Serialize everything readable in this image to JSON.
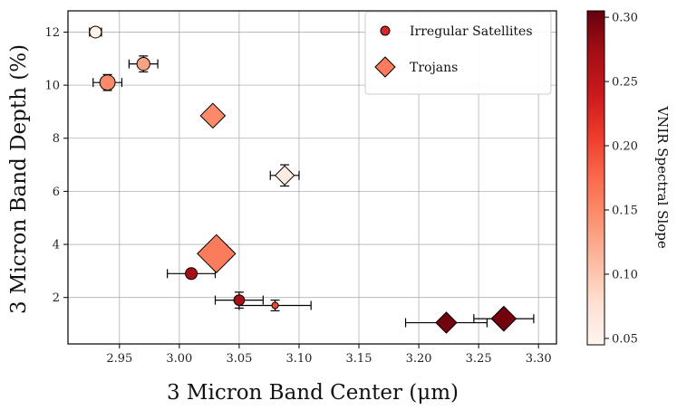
{
  "chart_data": {
    "type": "scatter",
    "xlabel": "3 Micron Band Center (μm)",
    "ylabel": "3 Micron Band Depth (%)",
    "xlim": [
      2.907,
      3.315
    ],
    "ylim": [
      0.25,
      12.8
    ],
    "xticks": [
      2.95,
      3.0,
      3.05,
      3.1,
      3.15,
      3.2,
      3.25,
      3.3
    ],
    "xtick_labels": [
      "2.95",
      "3.00",
      "3.05",
      "3.10",
      "3.15",
      "3.20",
      "3.25",
      "3.30"
    ],
    "yticks": [
      2,
      4,
      6,
      8,
      10,
      12
    ],
    "ytick_labels": [
      "2",
      "4",
      "6",
      "8",
      "10",
      "12"
    ],
    "grid": true,
    "legend": {
      "position": "top-right",
      "entries": [
        {
          "label": "Irregular Satellites",
          "marker": "circle"
        },
        {
          "label": "Trojans",
          "marker": "diamond"
        }
      ]
    },
    "colorbar": {
      "label": "VNIR Spectral Slope",
      "range": [
        0.045,
        0.305
      ],
      "ticks": [
        0.05,
        0.1,
        0.15,
        0.2,
        0.25,
        0.3
      ],
      "tick_labels": [
        "0.05",
        "0.10",
        "0.15",
        "0.20",
        "0.25",
        "0.30"
      ],
      "colormap": "Reds"
    },
    "series": [
      {
        "name": "Irregular Satellites",
        "marker": "circle",
        "points": [
          {
            "x": 2.93,
            "y": 12.0,
            "xerr": 0.005,
            "yerr": 0.15,
            "slope": 0.05,
            "size": 1.0
          },
          {
            "x": 2.94,
            "y": 10.1,
            "xerr": 0.012,
            "yerr": 0.3,
            "slope": 0.15,
            "size": 1.3
          },
          {
            "x": 2.97,
            "y": 10.8,
            "xerr": 0.012,
            "yerr": 0.3,
            "slope": 0.13,
            "size": 1.1
          },
          {
            "x": 3.01,
            "y": 2.9,
            "xerr": 0.02,
            "yerr": 0.15,
            "slope": 0.27,
            "size": 1.0
          },
          {
            "x": 3.05,
            "y": 1.9,
            "xerr": 0.02,
            "yerr": 0.3,
            "slope": 0.27,
            "size": 0.9
          },
          {
            "x": 3.08,
            "y": 1.7,
            "xerr": 0.03,
            "yerr": 0.2,
            "slope": 0.2,
            "size": 0.55
          }
        ]
      },
      {
        "name": "Trojans",
        "marker": "diamond",
        "points": [
          {
            "x": 3.028,
            "y": 8.85,
            "xerr": 0.0,
            "yerr": 0.0,
            "slope": 0.15,
            "size": 1.3
          },
          {
            "x": 3.088,
            "y": 6.6,
            "xerr": 0.012,
            "yerr": 0.4,
            "slope": 0.06,
            "size": 1.0
          },
          {
            "x": 3.031,
            "y": 3.65,
            "xerr": 0.01,
            "yerr": 0.4,
            "slope": 0.16,
            "size": 2.0
          },
          {
            "x": 3.223,
            "y": 1.05,
            "xerr": 0.034,
            "yerr": 0.2,
            "slope": 0.3,
            "size": 1.1
          },
          {
            "x": 3.271,
            "y": 1.2,
            "xerr": 0.025,
            "yerr": 0.2,
            "slope": 0.3,
            "size": 1.3
          }
        ]
      }
    ]
  }
}
